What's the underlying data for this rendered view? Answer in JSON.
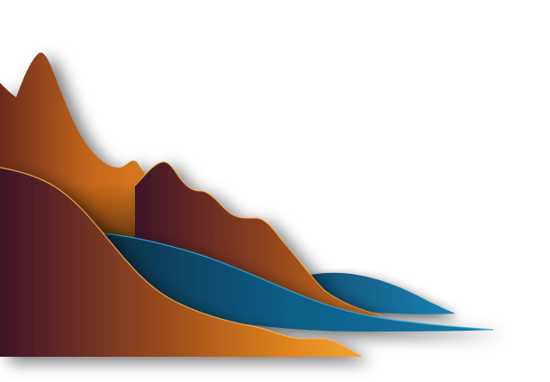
{
  "artwork": {
    "subject": "layered-paper-landscape",
    "colors": {
      "background": "#ffffff",
      "burgundy": "#3d1428",
      "orange": "#e0841e",
      "teal": "#0f5f86",
      "teal_dark": "#0a3550",
      "sand": "#f1a53a"
    }
  }
}
